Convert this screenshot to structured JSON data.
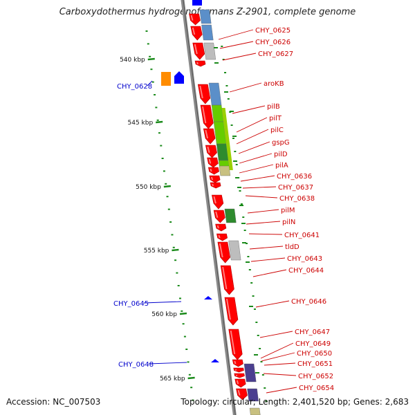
{
  "header": {
    "title": "Carboxydothermus hydrogenoformans Z-2901, complete genome"
  },
  "footer": {
    "accession": "Accession: NC_007503",
    "summary": "Topology: circular; Length: 2,401,520 bp; Genes: 2,683"
  },
  "colors": {
    "backbone": "#8a8a8a",
    "cds_forward": "#ff0000",
    "label_forward": "#cc0000",
    "label_reverse": "#0000cc",
    "tick": "#1a8a1a",
    "cog_blue": "#5b8fc9",
    "cog_grey": "#bdbdbd",
    "cog_green": "#66cc00",
    "cog_dark_green": "#2e8b2e",
    "cog_orange": "#ff8c00",
    "cog_purple": "#4b3f8f",
    "cog_khaki": "#c8c080",
    "reverse_blue": "#0000ff"
  },
  "scale": [
    {
      "label": "540 kbp"
    },
    {
      "label": "545 kbp"
    },
    {
      "label": "550 kbp"
    },
    {
      "label": "555 kbp"
    },
    {
      "label": "560 kbp"
    },
    {
      "label": "565 kbp"
    }
  ],
  "forward_labels": [
    "CHY_0625",
    "CHY_0626",
    "CHY_0627",
    "aroKB",
    "pilB",
    "pilT",
    "pilC",
    "gspG",
    "pilD",
    "pilA",
    "CHY_0636",
    "CHY_0637",
    "CHY_0638",
    "pilM",
    "pilN",
    "CHY_0641",
    "tldD",
    "CHY_0643",
    "CHY_0644",
    "CHY_0646",
    "CHY_0647",
    "CHY_0649",
    "CHY_0650",
    "CHY_0651",
    "CHY_0652",
    "CHY_0654"
  ],
  "reverse_labels": [
    "CHY_0628",
    "CHY_0645",
    "CHY_0648"
  ]
}
